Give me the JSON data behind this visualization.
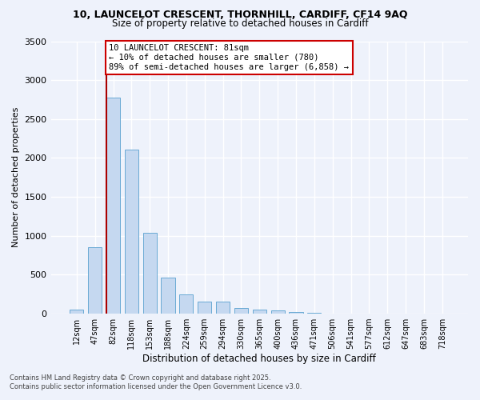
{
  "title1": "10, LAUNCELOT CRESCENT, THORNHILL, CARDIFF, CF14 9AQ",
  "title2": "Size of property relative to detached houses in Cardiff",
  "xlabel": "Distribution of detached houses by size in Cardiff",
  "ylabel": "Number of detached properties",
  "categories": [
    "12sqm",
    "47sqm",
    "82sqm",
    "118sqm",
    "153sqm",
    "188sqm",
    "224sqm",
    "259sqm",
    "294sqm",
    "330sqm",
    "365sqm",
    "400sqm",
    "436sqm",
    "471sqm",
    "506sqm",
    "541sqm",
    "577sqm",
    "612sqm",
    "647sqm",
    "683sqm",
    "718sqm"
  ],
  "values": [
    55,
    850,
    2780,
    2110,
    1040,
    460,
    250,
    160,
    160,
    75,
    55,
    40,
    20,
    10,
    5,
    0,
    0,
    0,
    0,
    0,
    0
  ],
  "bar_color": "#c5d8f0",
  "bar_edge_color": "#6aaad4",
  "annotation_text": "10 LAUNCELOT CRESCENT: 81sqm\n← 10% of detached houses are smaller (780)\n89% of semi-detached houses are larger (6,858) →",
  "annotation_box_color": "#ffffff",
  "annotation_box_edgecolor": "#cc0000",
  "vline_color": "#aa0000",
  "ylim": [
    0,
    3500
  ],
  "yticks": [
    0,
    500,
    1000,
    1500,
    2000,
    2500,
    3000,
    3500
  ],
  "background_color": "#eef2fb",
  "grid_color": "#ffffff",
  "footer1": "Contains HM Land Registry data © Crown copyright and database right 2025.",
  "footer2": "Contains public sector information licensed under the Open Government Licence v3.0."
}
